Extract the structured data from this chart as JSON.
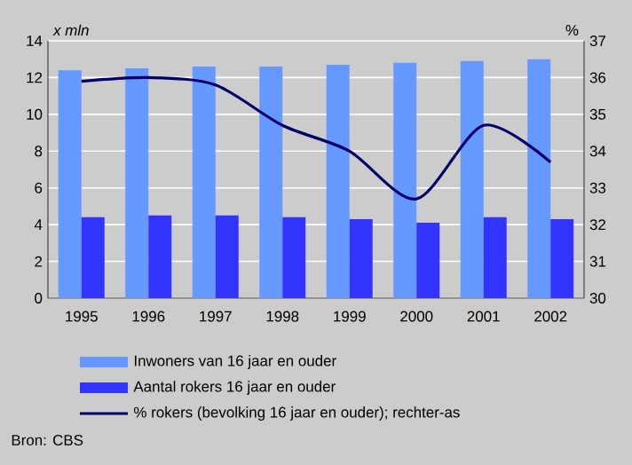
{
  "chart_data": {
    "type": "bar",
    "ylabel": "x mln",
    "y2label": "%",
    "categories": [
      "1995",
      "1996",
      "1997",
      "1998",
      "1999",
      "2000",
      "2001",
      "2002"
    ],
    "series": [
      {
        "name": "Inwoners van 16 jaar en ouder",
        "color": "#6699ff",
        "values": [
          12.4,
          12.5,
          12.6,
          12.6,
          12.7,
          12.8,
          12.9,
          13.0
        ]
      },
      {
        "name": "Aantal rokers 16 jaar en ouder",
        "color": "#3333ff",
        "values": [
          4.4,
          4.5,
          4.5,
          4.4,
          4.3,
          4.1,
          4.4,
          4.3
        ]
      },
      {
        "name": "% rokers (bevolking 16 jaar en ouder); rechter-as",
        "color": "#000066",
        "type": "line",
        "axis": "y2",
        "values": [
          35.9,
          36.0,
          35.8,
          34.7,
          34.0,
          32.7,
          34.7,
          33.7
        ]
      }
    ],
    "ylim": [
      0,
      14
    ],
    "yticks": [
      0,
      2,
      4,
      6,
      8,
      10,
      12,
      14
    ],
    "y2lim": [
      30,
      37
    ],
    "y2ticks": [
      30,
      31,
      32,
      33,
      34,
      35,
      36,
      37
    ],
    "grid": "y",
    "legend": "bottom",
    "annotations": [
      "Bron: CBS"
    ]
  }
}
